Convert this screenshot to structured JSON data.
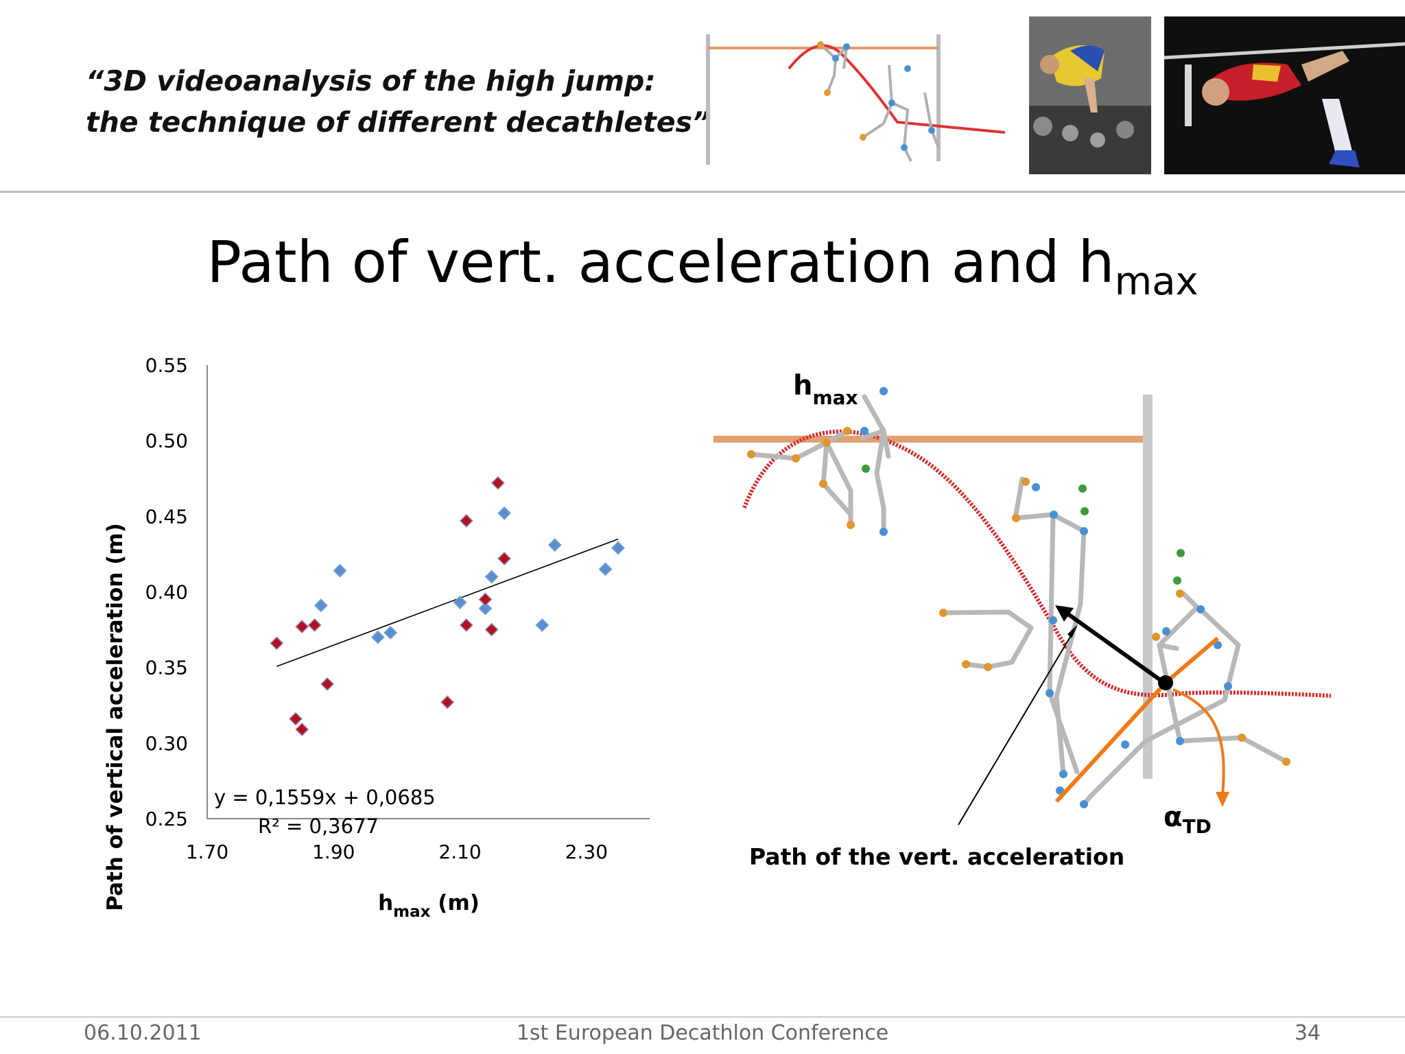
{
  "header": {
    "title_line1": "“3D videoanalysis of the high jump:",
    "title_line2": "the technique of different decathletes”"
  },
  "slide": {
    "title_main": "Path of vert. acceleration and h",
    "title_sub": "max"
  },
  "diagram": {
    "hmax_label": "h",
    "hmax_sub": "max",
    "path_label": "Path of the vert. acceleration",
    "alpha_label": "α",
    "alpha_sub": "TD"
  },
  "footer": {
    "date": "06.10.2011",
    "conference": "1st European Decathlon Conference",
    "page": "34"
  },
  "colors": {
    "blue_marker": "#5b8fcc",
    "red_marker": "#b3121e",
    "trajectory": "#d32f2f",
    "bar": "#e2a070",
    "touchdown": "#f07a18"
  },
  "chart_data": {
    "type": "scatter",
    "xlabel": "h",
    "xlabel_sub": "max",
    "xlabel_unit": " (m)",
    "ylabel": "Path of vertical acceleration (m)",
    "xlim": [
      1.7,
      2.4
    ],
    "ylim": [
      0.25,
      0.55
    ],
    "xticks": [
      1.7,
      1.9,
      2.1,
      2.3
    ],
    "xtick_labels": [
      "1.70",
      "1.90",
      "2.10",
      "2.30"
    ],
    "yticks": [
      0.25,
      0.3,
      0.35,
      0.4,
      0.45,
      0.5,
      0.55
    ],
    "ytick_labels": [
      "0.25",
      "0.30",
      "0.35",
      "0.40",
      "0.45",
      "0.50",
      "0.55"
    ],
    "equation": "y = 0,1559x + 0,0685",
    "r_squared": "R² = 0,3677",
    "trendline": {
      "slope": 0.1559,
      "intercept": 0.0685,
      "x_range": [
        1.81,
        2.35
      ]
    },
    "grid": false,
    "series": [
      {
        "marker": "diamond",
        "color": "#5b8fcc",
        "points": [
          [
            1.88,
            0.391
          ],
          [
            1.91,
            0.414
          ],
          [
            1.97,
            0.37
          ],
          [
            1.99,
            0.373
          ],
          [
            2.1,
            0.393
          ],
          [
            2.14,
            0.389
          ],
          [
            2.15,
            0.41
          ],
          [
            2.17,
            0.452
          ],
          [
            2.23,
            0.378
          ],
          [
            2.25,
            0.431
          ],
          [
            2.33,
            0.415
          ],
          [
            2.35,
            0.429
          ]
        ]
      },
      {
        "marker": "diamond",
        "color": "#b3121e",
        "points": [
          [
            1.81,
            0.366
          ],
          [
            1.84,
            0.316
          ],
          [
            1.85,
            0.309
          ],
          [
            1.85,
            0.377
          ],
          [
            1.87,
            0.378
          ],
          [
            1.89,
            0.339
          ],
          [
            2.08,
            0.327
          ],
          [
            2.11,
            0.378
          ],
          [
            2.11,
            0.447
          ],
          [
            2.14,
            0.395
          ],
          [
            2.15,
            0.375
          ],
          [
            2.16,
            0.472
          ],
          [
            2.17,
            0.422
          ]
        ]
      }
    ]
  }
}
